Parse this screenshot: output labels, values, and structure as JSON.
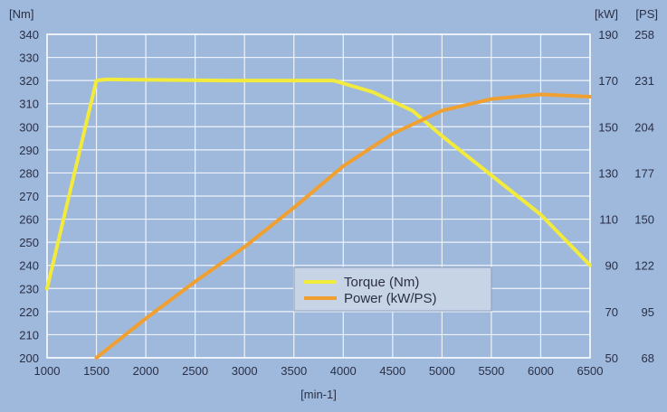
{
  "chart_data": {
    "type": "line",
    "x_label": "[min-1]",
    "x_ticks": [
      1000,
      1500,
      2000,
      2500,
      3000,
      3500,
      4000,
      4500,
      5000,
      5500,
      6000,
      6500
    ],
    "xlim": [
      1000,
      6500
    ],
    "left_axis": {
      "unit": "[Nm]",
      "ticks": [
        200,
        210,
        220,
        230,
        240,
        250,
        260,
        270,
        280,
        290,
        300,
        310,
        320,
        330,
        340
      ],
      "ylim": [
        200,
        340
      ]
    },
    "right_axis_kw": {
      "unit": "[kW]",
      "ticks": [
        50,
        70,
        90,
        110,
        130,
        150,
        170,
        190
      ],
      "ylim": [
        50,
        190
      ]
    },
    "right_axis_ps": {
      "unit": "[PS]",
      "ticks": [
        68,
        95,
        122,
        150,
        177,
        204,
        231,
        258
      ]
    },
    "grid": true,
    "legend_position": "lower-center",
    "series": [
      {
        "name": "Torque (Nm)",
        "axis": "left",
        "color": "#f2ea3c",
        "points": [
          [
            1000,
            230
          ],
          [
            1500,
            320
          ],
          [
            1600,
            320.5
          ],
          [
            2800,
            320
          ],
          [
            3900,
            320
          ],
          [
            4300,
            315
          ],
          [
            4700,
            307
          ],
          [
            5000,
            296
          ],
          [
            5500,
            279
          ],
          [
            6000,
            262
          ],
          [
            6500,
            240
          ]
        ]
      },
      {
        "name": "Power (kW/PS)",
        "axis": "right",
        "color": "#f0a030",
        "points": [
          [
            1500,
            50
          ],
          [
            2000,
            67
          ],
          [
            2500,
            83
          ],
          [
            3000,
            98
          ],
          [
            3500,
            115
          ],
          [
            4000,
            133
          ],
          [
            4500,
            147
          ],
          [
            5000,
            157
          ],
          [
            5500,
            162
          ],
          [
            6000,
            164
          ],
          [
            6500,
            163
          ]
        ]
      }
    ]
  }
}
